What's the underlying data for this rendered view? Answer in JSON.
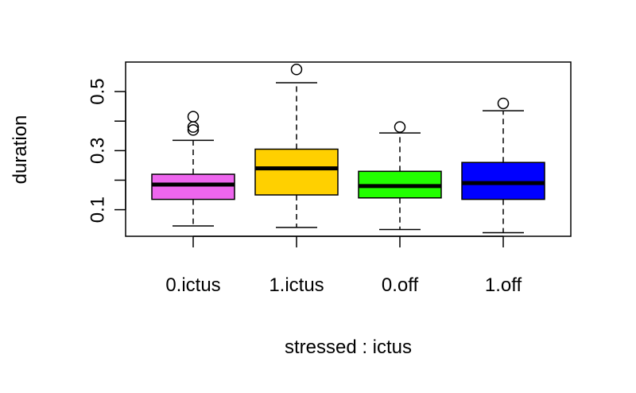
{
  "chart_data": {
    "type": "box",
    "xlabel": "stressed : ictus",
    "ylabel": "duration",
    "ylim": [
      0.01,
      0.6
    ],
    "yticks": [
      0.1,
      0.2,
      0.3,
      0.4,
      0.5
    ],
    "ytick_labels": [
      "0.1",
      "",
      "0.3",
      "",
      "0.5"
    ],
    "categories": [
      "0.ictus",
      "1.ictus",
      "0.off",
      "1.off"
    ],
    "boxes": [
      {
        "label": "0.ictus",
        "color": "#EE66EE",
        "whisker_low": 0.045,
        "q1": 0.135,
        "median": 0.185,
        "q3": 0.22,
        "whisker_high": 0.335,
        "outliers": [
          0.37,
          0.38,
          0.415
        ]
      },
      {
        "label": "1.ictus",
        "color": "#FFD000",
        "whisker_low": 0.04,
        "q1": 0.15,
        "median": 0.24,
        "q3": 0.305,
        "whisker_high": 0.53,
        "outliers": [
          0.575
        ]
      },
      {
        "label": "0.off",
        "color": "#22FF00",
        "whisker_low": 0.033,
        "q1": 0.14,
        "median": 0.18,
        "q3": 0.23,
        "whisker_high": 0.36,
        "outliers": [
          0.38
        ]
      },
      {
        "label": "1.off",
        "color": "#0000FF",
        "whisker_low": 0.022,
        "q1": 0.135,
        "median": 0.19,
        "q3": 0.26,
        "whisker_high": 0.435,
        "outliers": [
          0.46
        ]
      }
    ]
  }
}
